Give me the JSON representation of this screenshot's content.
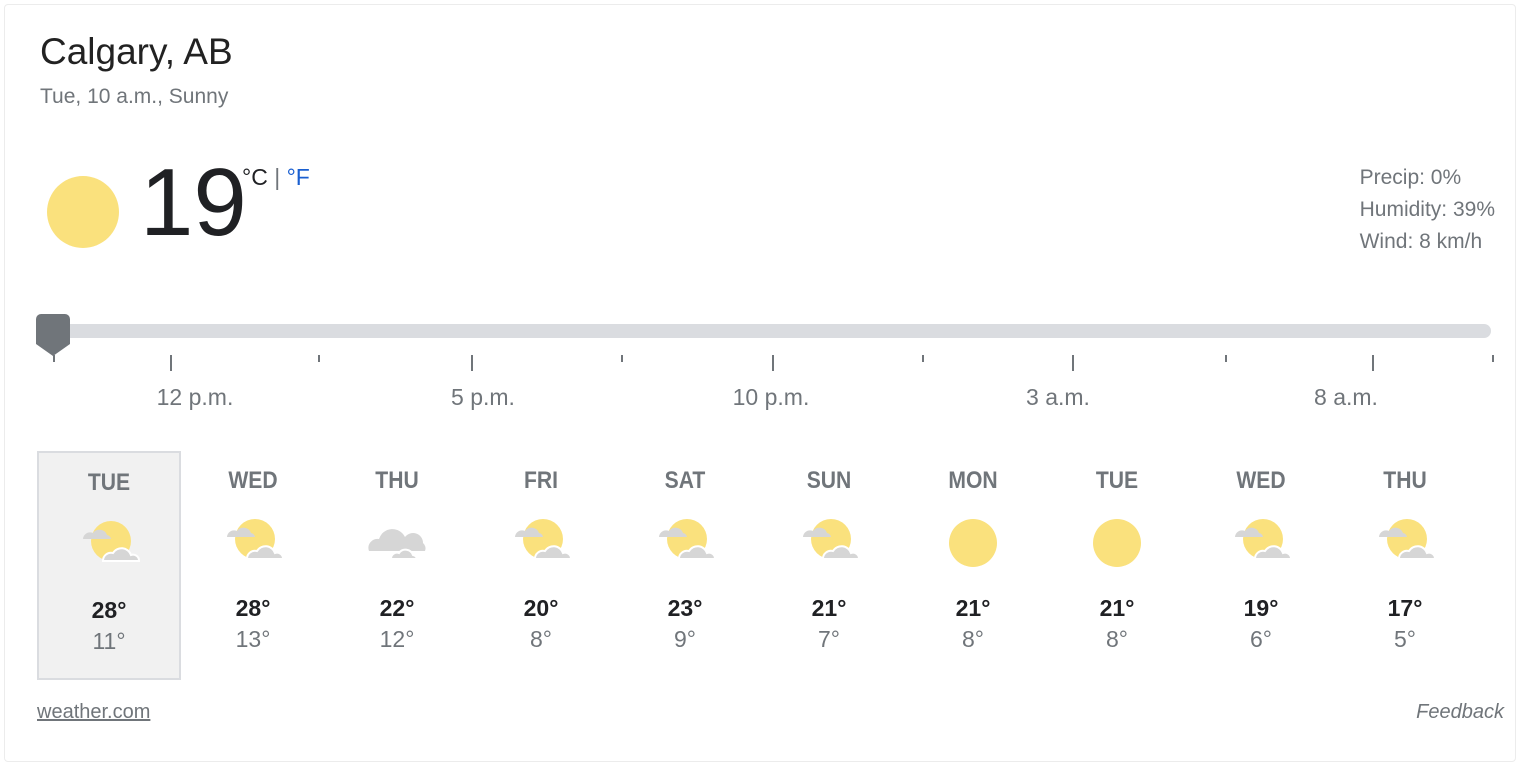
{
  "location": "Calgary, AB",
  "subtitle": "Tue, 10 a.m., Sunny",
  "current": {
    "icon": "sunny-icon",
    "temp": "19",
    "unit_c": "°C",
    "separator": "|",
    "unit_f": "°F"
  },
  "details": {
    "precip": "Precip: 0%",
    "humidity": "Humidity: 39%",
    "wind": "Wind: 8 km/h"
  },
  "timeline": {
    "labels": [
      "12 p.m.",
      "5 p.m.",
      "10 p.m.",
      "3 a.m.",
      "8 a.m."
    ],
    "position_fraction": 0
  },
  "days": [
    {
      "name": "TUE",
      "icon": "partly-cloudy",
      "hi": "28°",
      "lo": "11°",
      "selected": true
    },
    {
      "name": "WED",
      "icon": "partly-cloudy",
      "hi": "28°",
      "lo": "13°"
    },
    {
      "name": "THU",
      "icon": "cloudy",
      "hi": "22°",
      "lo": "12°"
    },
    {
      "name": "FRI",
      "icon": "partly-cloudy",
      "hi": "20°",
      "lo": "8°"
    },
    {
      "name": "SAT",
      "icon": "partly-cloudy",
      "hi": "23°",
      "lo": "9°"
    },
    {
      "name": "SUN",
      "icon": "partly-cloudy",
      "hi": "21°",
      "lo": "7°"
    },
    {
      "name": "MON",
      "icon": "sunny",
      "hi": "21°",
      "lo": "8°"
    },
    {
      "name": "TUE",
      "icon": "sunny",
      "hi": "21°",
      "lo": "8°"
    },
    {
      "name": "WED",
      "icon": "partly-cloudy",
      "hi": "19°",
      "lo": "6°"
    },
    {
      "name": "THU",
      "icon": "partly-cloudy",
      "hi": "17°",
      "lo": "5°"
    }
  ],
  "footer": {
    "source": "weather.com",
    "feedback": "Feedback"
  },
  "colors": {
    "sun": "#fae17d",
    "cloud": "#d6d6d6",
    "link": "#1a5fd0"
  }
}
